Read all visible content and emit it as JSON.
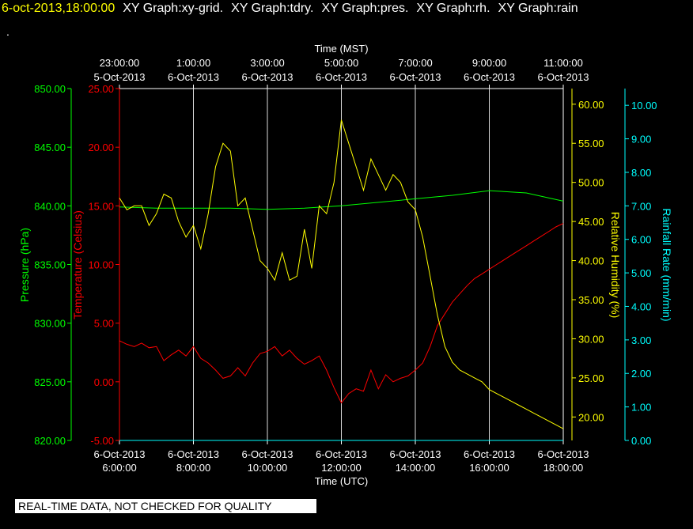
{
  "header": {
    "timestamp": "6-oct-2013,18:00:00",
    "titles": [
      "XY Graph:xy-grid.",
      "XY Graph:tdry.",
      "XY Graph:pres.",
      "XY Graph:rh.",
      "XY Graph:rain"
    ]
  },
  "dot": ".",
  "footer": "REAL-TIME DATA, NOT CHECKED FOR QUALITY",
  "colors": {
    "pressure": "#00ff00",
    "temperature": "#ff0000",
    "humidity": "#ffff00",
    "rain": "#00ffff",
    "grid": "#dcdcdc"
  },
  "chart_data": {
    "type": "line",
    "top_axis": {
      "title": "Time (MST)",
      "ticks": [
        [
          "23:00:00",
          "5-Oct-2013"
        ],
        [
          "1:00:00",
          "6-Oct-2013"
        ],
        [
          "3:00:00",
          "6-Oct-2013"
        ],
        [
          "5:00:00",
          "6-Oct-2013"
        ],
        [
          "7:00:00",
          "6-Oct-2013"
        ],
        [
          "9:00:00",
          "6-Oct-2013"
        ],
        [
          "11:00:00",
          "6-Oct-2013"
        ]
      ]
    },
    "bottom_axis": {
      "title": "Time (UTC)",
      "range": [
        "2013-10-06 06:00",
        "2013-10-06 18:00"
      ],
      "ticks": [
        [
          "6-Oct-2013",
          "6:00:00"
        ],
        [
          "6-Oct-2013",
          "8:00:00"
        ],
        [
          "6-Oct-2013",
          "10:00:00"
        ],
        [
          "6-Oct-2013",
          "12:00:00"
        ],
        [
          "6-Oct-2013",
          "14:00:00"
        ],
        [
          "6-Oct-2013",
          "16:00:00"
        ],
        [
          "6-Oct-2013",
          "18:00:00"
        ]
      ]
    },
    "y_axes": {
      "pressure": {
        "label": "Pressure (hPa)",
        "range": [
          820,
          850
        ],
        "ticks": [
          "820.00",
          "825.00",
          "830.00",
          "835.00",
          "840.00",
          "845.00",
          "850.00"
        ]
      },
      "temperature": {
        "label": "Temperature (Celsius)",
        "range": [
          -5,
          25
        ],
        "ticks": [
          "-5.00",
          "0.00",
          "5.00",
          "10.00",
          "15.00",
          "20.00",
          "25.00"
        ]
      },
      "humidity": {
        "label": "Relative Humidity (%)",
        "range": [
          17,
          62
        ],
        "ticks": [
          "20.00",
          "25.00",
          "30.00",
          "35.00",
          "40.00",
          "45.00",
          "50.00",
          "55.00",
          "60.00"
        ]
      },
      "rain": {
        "label": "Rainfall Rate (mm/min)",
        "range": [
          0,
          10.5
        ],
        "ticks": [
          "0.00",
          "1.00",
          "2.00",
          "3.00",
          "4.00",
          "5.00",
          "6.00",
          "7.00",
          "8.00",
          "9.00",
          "10.00"
        ]
      }
    },
    "series": [
      {
        "name": "tdry",
        "x_hours_utc": [
          6,
          6.2,
          6.4,
          6.6,
          6.8,
          7,
          7.2,
          7.4,
          7.6,
          7.8,
          8,
          8.2,
          8.4,
          8.6,
          8.8,
          9,
          9.2,
          9.4,
          9.6,
          9.8,
          10,
          10.2,
          10.4,
          10.6,
          10.8,
          11,
          11.2,
          11.4,
          11.6,
          11.8,
          12,
          12.2,
          12.4,
          12.6,
          12.8,
          13,
          13.2,
          13.4,
          13.6,
          13.8,
          14,
          14.2,
          14.4,
          14.6,
          14.8,
          15,
          15.2,
          15.4,
          15.6,
          15.8,
          16,
          16.2,
          16.4,
          16.6,
          16.8,
          17,
          17.2,
          17.4,
          17.6,
          17.8,
          18
        ],
        "values": [
          3.5,
          3.2,
          3.0,
          3.3,
          2.9,
          3.0,
          1.8,
          2.3,
          2.7,
          2.2,
          3.0,
          2.0,
          1.6,
          1.0,
          0.3,
          0.5,
          1.2,
          0.5,
          1.6,
          2.4,
          2.6,
          3.0,
          2.2,
          2.7,
          2.0,
          1.5,
          1.8,
          2.2,
          1.0,
          -0.5,
          -1.8,
          -1.0,
          -0.6,
          -0.8,
          1.0,
          -0.6,
          0.6,
          0.0,
          0.3,
          0.5,
          1.0,
          1.6,
          3.0,
          4.8,
          5.8,
          6.8,
          7.5,
          8.2,
          8.8,
          9.2,
          9.6,
          10.0,
          10.4,
          10.8,
          11.2,
          11.6,
          12.0,
          12.4,
          12.8,
          13.2,
          13.5
        ]
      },
      {
        "name": "pres",
        "x_hours_utc": [
          6,
          7,
          8,
          9,
          10,
          11,
          12,
          13,
          14,
          15,
          16,
          17,
          18
        ],
        "values": [
          839.9,
          839.8,
          839.8,
          839.8,
          839.7,
          839.8,
          840.0,
          840.3,
          840.6,
          840.9,
          841.3,
          841.1,
          840.4
        ]
      },
      {
        "name": "rh",
        "x_hours_utc": [
          6,
          6.2,
          6.4,
          6.6,
          6.8,
          7,
          7.2,
          7.4,
          7.6,
          7.8,
          8,
          8.2,
          8.4,
          8.6,
          8.8,
          9,
          9.2,
          9.4,
          9.6,
          9.8,
          10,
          10.2,
          10.4,
          10.6,
          10.8,
          11,
          11.2,
          11.4,
          11.6,
          11.8,
          12,
          12.2,
          12.4,
          12.6,
          12.8,
          13,
          13.2,
          13.4,
          13.6,
          13.8,
          14,
          14.2,
          14.4,
          14.6,
          14.8,
          15,
          15.2,
          15.4,
          15.6,
          15.8,
          16,
          16.2,
          16.4,
          16.6,
          16.8,
          17,
          17.2,
          17.4,
          17.6,
          17.8,
          18
        ],
        "values": [
          48,
          46.5,
          47,
          47,
          44.5,
          46,
          48.5,
          48,
          45,
          43,
          44.5,
          41.5,
          46,
          52,
          55,
          54,
          47,
          48,
          44,
          40,
          39,
          37.5,
          41,
          37.5,
          38,
          44,
          39,
          47,
          46,
          50,
          58,
          55,
          52,
          49,
          53,
          51,
          49,
          51,
          50,
          47.5,
          46.5,
          43,
          38,
          33,
          29,
          27,
          26,
          25.5,
          25,
          24.5,
          23.5,
          23,
          22.5,
          22,
          21.5,
          21,
          20.5,
          20,
          19.5,
          19,
          18.5
        ]
      },
      {
        "name": "rain",
        "x_hours_utc": [
          6,
          18
        ],
        "values": [
          0,
          0
        ]
      }
    ]
  }
}
